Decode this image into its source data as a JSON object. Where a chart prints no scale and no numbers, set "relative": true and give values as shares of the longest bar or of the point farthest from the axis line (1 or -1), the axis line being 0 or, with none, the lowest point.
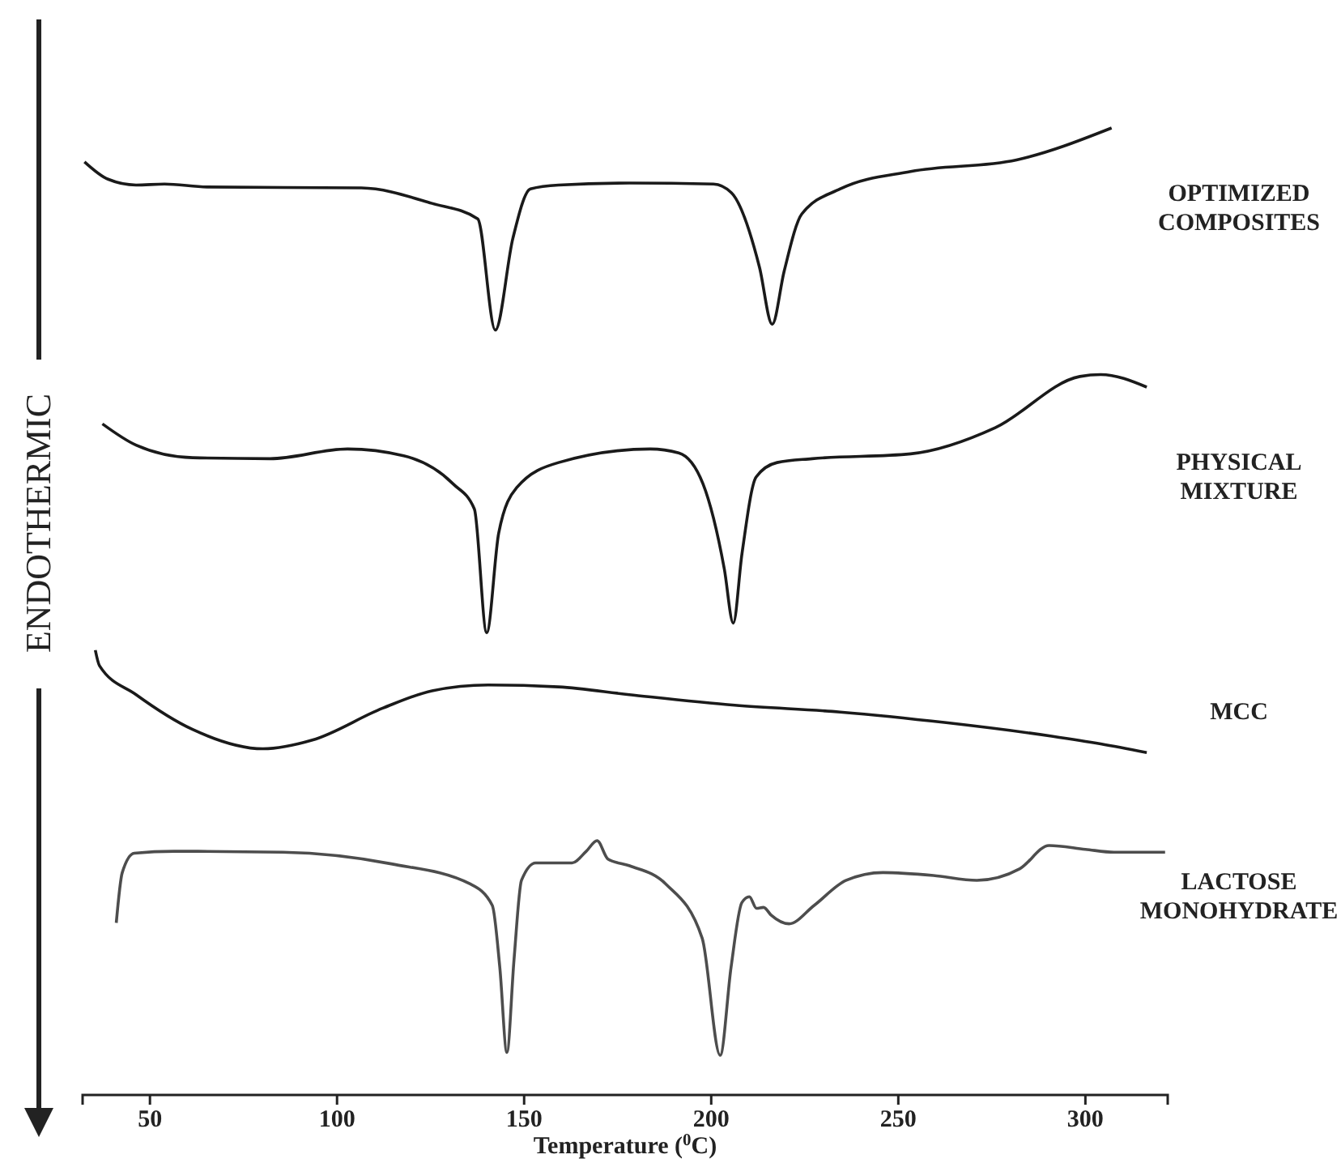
{
  "chart_data": {
    "type": "line",
    "xlabel": "Temperature ($^{0}$C)",
    "ylabel": "ENDOTHERMIC",
    "relative": true,
    "xlim": [
      32,
      322
    ],
    "xticks": [
      50,
      100,
      150,
      200,
      250,
      300
    ],
    "series": [
      {
        "name": "OPTIMIZED COMPOSITES",
        "color": "#1a1a1a",
        "x": [
          32.5,
          38.8,
          46.3,
          53.9,
          65.2,
          106.5,
          125.4,
          137.6,
          142.3,
          147,
          151.7,
          159.2,
          178.1,
          200.6,
          205.4,
          212.9,
          216.3,
          219.5,
          224.2,
          234.5,
          253.3,
          281.6,
          307
        ],
        "values": [
          0.965,
          0.947,
          0.941,
          0.942,
          0.939,
          0.938,
          0.922,
          0.906,
          0.791,
          0.886,
          0.937,
          0.941,
          0.943,
          0.942,
          0.933,
          0.856,
          0.797,
          0.852,
          0.911,
          0.937,
          0.955,
          0.967,
          1
        ]
      },
      {
        "name": "PHYSICAL MIXTURE",
        "color": "#1a1a1a",
        "x": [
          37.3,
          46.3,
          61.4,
          82.1,
          102.8,
          117.8,
          131,
          136.7,
          140,
          143.2,
          148,
          159.2,
          183.7,
          191.3,
          197.8,
          203.5,
          205.9,
          208.2,
          212,
          217.6,
          227,
          253.3,
          275.9,
          298.5,
          304.1,
          316.4
        ],
        "values": [
          0.694,
          0.672,
          0.659,
          0.658,
          0.668,
          0.661,
          0.632,
          0.606,
          0.478,
          0.581,
          0.628,
          0.654,
          0.668,
          0.664,
          0.632,
          0.544,
          0.488,
          0.559,
          0.639,
          0.654,
          0.658,
          0.663,
          0.69,
          0.743,
          0.745,
          0.732
        ]
      },
      {
        "name": "MCC",
        "color": "#1a1a1a",
        "x": [
          35.4,
          36.5,
          46.3,
          61.4,
          80.2,
          93.4,
          112.2,
          125.4,
          140.4,
          159.2,
          178.1,
          206.3,
          234.5,
          262.8,
          291,
          304.1,
          316.4
        ],
        "values": [
          0.46,
          0.444,
          0.414,
          0.378,
          0.358,
          0.367,
          0.4,
          0.418,
          0.424,
          0.422,
          0.414,
          0.403,
          0.396,
          0.385,
          0.371,
          0.363,
          0.354
        ]
      },
      {
        "name": "LACTOSE MONOHYDRATE",
        "color": "#4d4d4d",
        "x": [
          41,
          42.6,
          45.8,
          56.5,
          85.5,
          114.5,
          135.7,
          141.5,
          143.5,
          145.4,
          147.3,
          149.3,
          153.1,
          162.8,
          166.6,
          169.5,
          172.4,
          178.2,
          187.9,
          197.6,
          202.4,
          205.3,
          208.2,
          210.2,
          212.1,
          214,
          216,
          220.8,
          227.5,
          236.1,
          245.9,
          259.4,
          271,
          282.5,
          290.3,
          300,
          307.7,
          321.3
        ],
        "values": [
          0.178,
          0.23,
          0.25,
          0.252,
          0.251,
          0.239,
          0.218,
          0.196,
          0.132,
          0.044,
          0.14,
          0.222,
          0.24,
          0.24,
          0.252,
          0.263,
          0.244,
          0.237,
          0.218,
          0.162,
          0.041,
          0.132,
          0.199,
          0.205,
          0.193,
          0.194,
          0.186,
          0.177,
          0.196,
          0.222,
          0.23,
          0.227,
          0.222,
          0.234,
          0.258,
          0.254,
          0.251,
          0.251
        ]
      }
    ]
  }
}
